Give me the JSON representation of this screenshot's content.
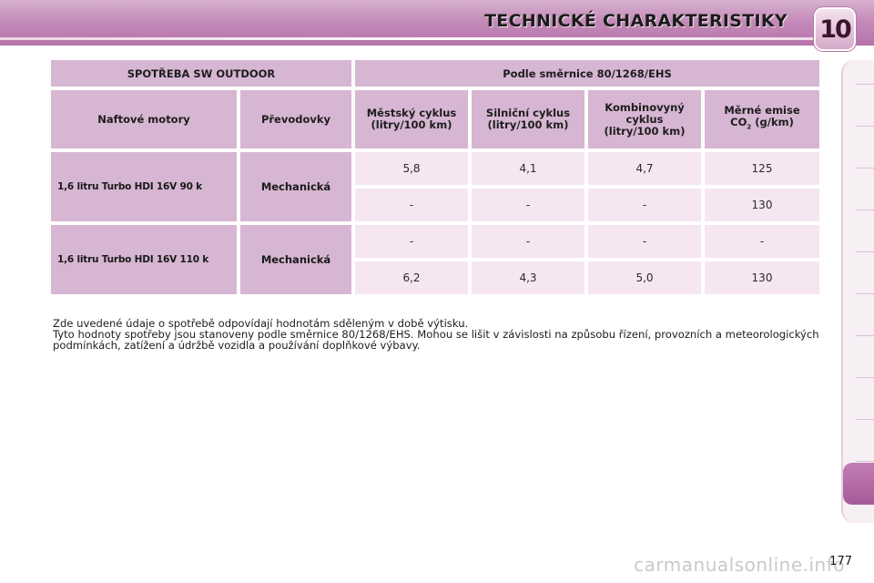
{
  "header": {
    "title": "TECHNICKÉ CHARAKTERISTIKY",
    "chapter": "10"
  },
  "table": {
    "group_header_left": "SPOTŘEBA SW OUTDOOR",
    "group_header_right": "Podle směrnice 80/1268/EHS",
    "col_engine": "Naftové motory",
    "col_gearbox": "Převodovky",
    "col_city_1": "Městský cyklus",
    "col_city_2": "(litry/100 km)",
    "col_road_1": "Silniční cyklus",
    "col_road_2": "(litry/100 km)",
    "col_comb_1": "Kombinovyný",
    "col_comb_2": "cyklus",
    "col_comb_3": "(litry/100 km)",
    "col_co2_1": "Měrné emise",
    "col_co2_2a": "CO",
    "col_co2_sub": "2",
    "col_co2_2b": " (g/km)",
    "engines": [
      {
        "name": "1,6 litru Turbo HDI 16V 90 k",
        "gearbox": "Mechanická",
        "rows": [
          {
            "city": "5,8",
            "road": "4,1",
            "combined": "4,7",
            "co2": "125"
          },
          {
            "city": "-",
            "road": "-",
            "combined": "-",
            "co2": "130"
          }
        ]
      },
      {
        "name": "1,6 litru Turbo HDI 16V 110 k",
        "gearbox": "Mechanická",
        "rows": [
          {
            "city": "-",
            "road": "-",
            "combined": "-",
            "co2": "-"
          },
          {
            "city": "6,2",
            "road": "4,3",
            "combined": "5,0",
            "co2": "130"
          }
        ]
      }
    ]
  },
  "notes": {
    "line1": "Zde uvedené údaje o spotřebě odpovídají hodnotám sděleným v době výtisku.",
    "line2": "Tyto hodnoty spotřeby jsou stanoveny podle směrnice 80/1268/EHS. Mohou se lišit v závislosti na způsobu řízení, provozních a meteorologických podmínkách, zatížení a údržbě vozidla a používání doplňkové výbavy."
  },
  "page_number": "177",
  "watermark": "carmanualsonline.info",
  "colors": {
    "header_accent": "#c48cba",
    "table_header": "#d6b6d2",
    "table_cell": "#f6e6f2",
    "tab_active": "#a55a98"
  }
}
